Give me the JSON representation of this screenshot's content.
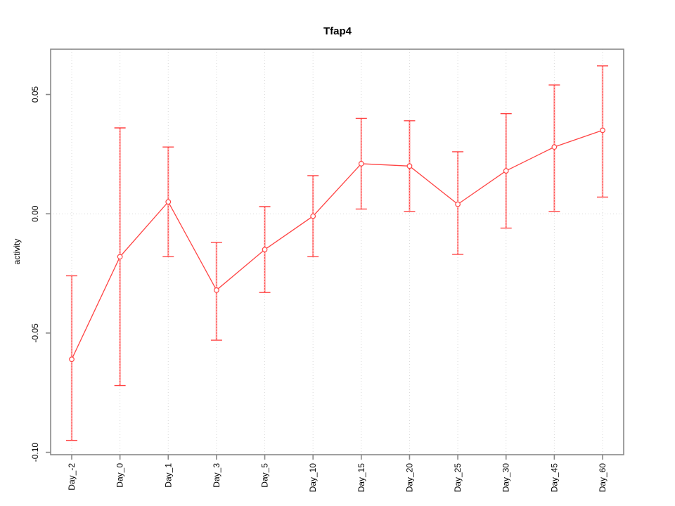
{
  "title": "Tfap4",
  "chart_data": {
    "type": "line",
    "title": "Tfap4",
    "xlabel": "",
    "ylabel": "activity",
    "categories": [
      "Day_-2",
      "Day_0",
      "Day_1",
      "Day_3",
      "Day_5",
      "Day_10",
      "Day_15",
      "Day_20",
      "Day_25",
      "Day_30",
      "Day_45",
      "Day_60"
    ],
    "series": [
      {
        "name": "activity",
        "values": [
          -0.061,
          -0.018,
          0.005,
          -0.032,
          -0.015,
          -0.001,
          0.021,
          0.02,
          0.004,
          0.018,
          0.028,
          0.035
        ],
        "error_upper": [
          -0.026,
          0.036,
          0.028,
          -0.012,
          0.003,
          0.016,
          0.04,
          0.039,
          0.026,
          0.042,
          0.054,
          0.062
        ],
        "error_lower": [
          -0.095,
          -0.072,
          -0.018,
          -0.053,
          -0.033,
          -0.018,
          0.002,
          0.001,
          -0.017,
          -0.006,
          0.001,
          0.007
        ]
      }
    ],
    "yticks": [
      0.05,
      0.0,
      -0.05,
      -0.1
    ],
    "ytick_labels": [
      "0.05",
      "0.00",
      "-0.05",
      "-0.10"
    ],
    "ylim": [
      -0.101,
      0.069
    ],
    "grid": {
      "vertical": "dotted at each category",
      "horizontal": "dotted at 0 only"
    },
    "legend": "none",
    "marker": "open-circle",
    "colors": {
      "series": "#ff4444",
      "error_bar_light": "#ffaaaa",
      "error_bar_dash": "#ff4444",
      "grid": "#d8d8d8",
      "box": "#888888",
      "text": "#000000",
      "background": "#ffffff"
    }
  }
}
